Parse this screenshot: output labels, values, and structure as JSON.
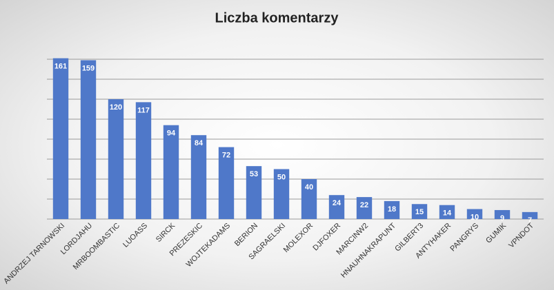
{
  "chart_data": {
    "type": "bar",
    "title": "Liczba komentarzy",
    "categories": [
      "ANDRZEJ TARNOWSKI",
      "LORDJAHU",
      "MRBOOMBASTIC",
      "LUOASS",
      "SIRCK",
      "PREZESKIC",
      "WOJTEKADAMS",
      "BERION",
      "SAGRAELSKI",
      "MOLEXOR",
      "DJFOXER",
      "MARCINW2",
      "HNAUHNAKRAPUNT",
      "GILBERT3",
      "ANTYHAKER",
      "PANGRYS",
      "GUMIK",
      "VPNDOT"
    ],
    "values": [
      161,
      159,
      120,
      117,
      94,
      84,
      72,
      53,
      50,
      40,
      24,
      22,
      18,
      15,
      14,
      10,
      9,
      7
    ],
    "color": "#4f78c9",
    "ylim": [
      0,
      180
    ],
    "yticks": [
      0,
      20,
      40,
      60,
      80,
      100,
      120,
      140,
      160
    ],
    "grid": true
  }
}
